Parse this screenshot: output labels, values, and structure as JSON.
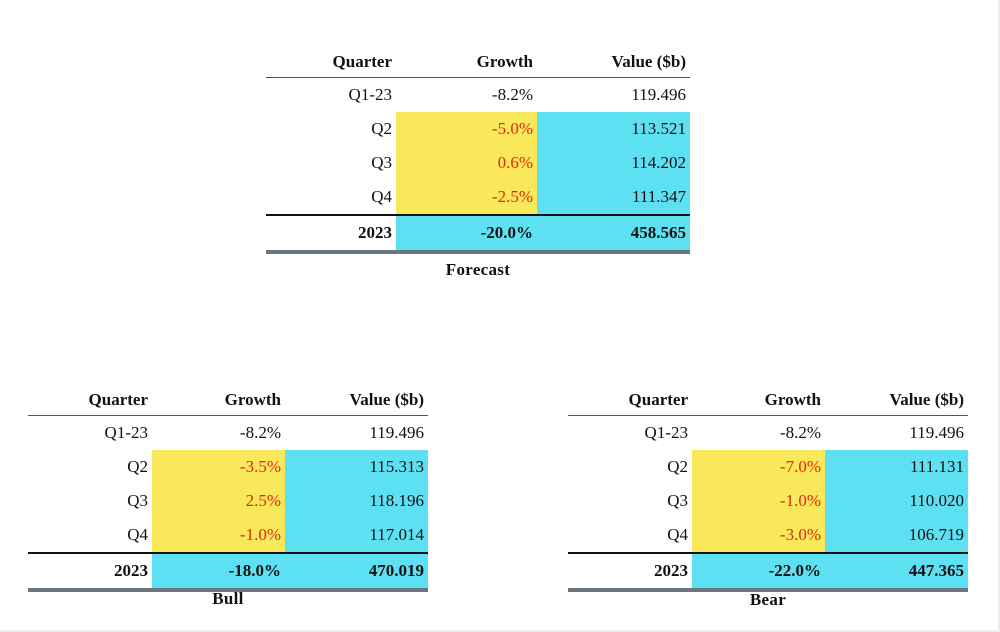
{
  "tables": [
    {
      "caption": "Forecast",
      "headers": {
        "quarter": "Quarter",
        "growth": "Growth",
        "value": "Value ($b)"
      },
      "rows": [
        {
          "quarter": "Q1-23",
          "growth": "-8.2%",
          "value": "119.496"
        },
        {
          "quarter": "Q2",
          "growth": "-5.0%",
          "value": "113.521"
        },
        {
          "quarter": "Q3",
          "growth": "0.6%",
          "value": "114.202"
        },
        {
          "quarter": "Q4",
          "growth": "-2.5%",
          "value": "111.347"
        }
      ],
      "total": {
        "quarter": "2023",
        "growth": "-20.0%",
        "value": "458.565"
      }
    },
    {
      "caption": "Bull",
      "headers": {
        "quarter": "Quarter",
        "growth": "Growth",
        "value": "Value ($b)"
      },
      "rows": [
        {
          "quarter": "Q1-23",
          "growth": "-8.2%",
          "value": "119.496"
        },
        {
          "quarter": "Q2",
          "growth": "-3.5%",
          "value": "115.313"
        },
        {
          "quarter": "Q3",
          "growth": "2.5%",
          "value": "118.196"
        },
        {
          "quarter": "Q4",
          "growth": "-1.0%",
          "value": "117.014"
        }
      ],
      "total": {
        "quarter": "2023",
        "growth": "-18.0%",
        "value": "470.019"
      }
    },
    {
      "caption": "Bear",
      "headers": {
        "quarter": "Quarter",
        "growth": "Growth",
        "value": "Value ($b)"
      },
      "rows": [
        {
          "quarter": "Q1-23",
          "growth": "-8.2%",
          "value": "119.496"
        },
        {
          "quarter": "Q2",
          "growth": "-7.0%",
          "value": "111.131"
        },
        {
          "quarter": "Q3",
          "growth": "-1.0%",
          "value": "110.020"
        },
        {
          "quarter": "Q4",
          "growth": "-3.0%",
          "value": "106.719"
        }
      ],
      "total": {
        "quarter": "2023",
        "growth": "-22.0%",
        "value": "447.365"
      }
    }
  ],
  "colors": {
    "input_highlight": "#f9e85a",
    "output_highlight": "#5ee0f3",
    "input_text": "#e02810"
  }
}
